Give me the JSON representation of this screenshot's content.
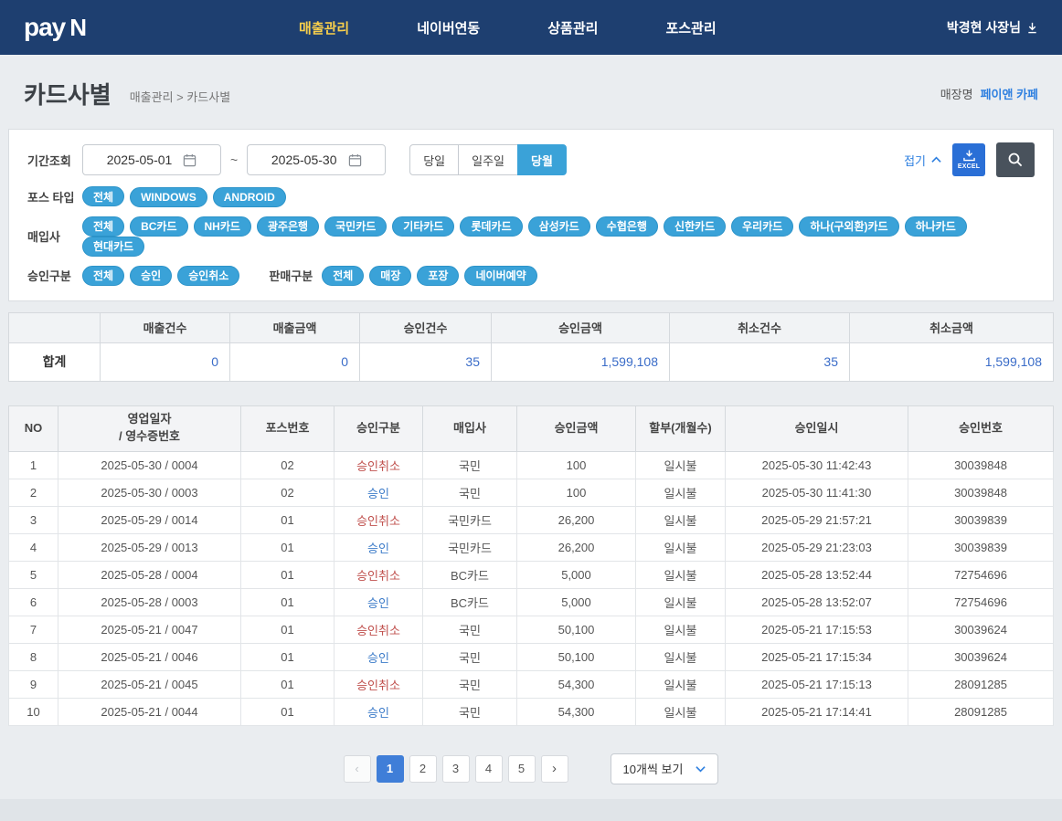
{
  "colors": {
    "c_topbar": "#1e3f70",
    "c_nav_active": "#f8cf4b",
    "c_pill": "#3aa2d8",
    "c_pill_border": "#2b93c9",
    "c_accent": "#2f80e0",
    "c_excel": "#2a6fd6",
    "c_search": "#49525c",
    "c_number": "#3a6cc8",
    "c_approve": "#3d7cc9",
    "c_cancel": "#c0504d",
    "c_page_active": "#3f7ed8"
  },
  "app": {
    "logo_pay": "pay",
    "logo_n": "N",
    "user": "박경현 사장님"
  },
  "nav": {
    "items": [
      {
        "label": "매출관리",
        "active": true
      },
      {
        "label": "네이버연동",
        "active": false
      },
      {
        "label": "상품관리",
        "active": false
      },
      {
        "label": "포스관리",
        "active": false
      }
    ]
  },
  "page": {
    "title": "카드사별",
    "breadcrumb": "매출관리 > 카드사별",
    "store_label": "매장명",
    "store_name": "페이앤 카페"
  },
  "filters": {
    "period_label": "기간조회",
    "date_from": "2025-05-01",
    "date_separator": "~",
    "date_to": "2025-05-30",
    "quick_buttons": [
      {
        "label": "당일",
        "active": false
      },
      {
        "label": "일주일",
        "active": false
      },
      {
        "label": "당월",
        "active": true
      }
    ],
    "collapse_label": "접기",
    "excel_label": "EXCEL",
    "pos_type_label": "포스 타입",
    "pos_types": [
      "전체",
      "WINDOWS",
      "ANDROID"
    ],
    "acquirer_label": "매입사",
    "acquirers": [
      "전체",
      "BC카드",
      "NH카드",
      "광주은행",
      "국민카드",
      "기타카드",
      "롯데카드",
      "삼성카드",
      "수협은행",
      "신한카드",
      "우리카드",
      "하나(구외환)카드",
      "하나카드",
      "현대카드"
    ],
    "approval_label": "승인구분",
    "approval_types": [
      "전체",
      "승인",
      "승인취소"
    ],
    "sale_label": "판매구분",
    "sale_types": [
      "전체",
      "매장",
      "포장",
      "네이버예약"
    ]
  },
  "summary": {
    "headers": [
      "매출건수",
      "매출금액",
      "승인건수",
      "승인금액",
      "취소건수",
      "취소금액"
    ],
    "row_label": "합계",
    "values": [
      "0",
      "0",
      "35",
      "1,599,108",
      "35",
      "1,599,108"
    ]
  },
  "table": {
    "headers": [
      [
        "NO"
      ],
      [
        "영업일자",
        "/ 영수증번호"
      ],
      [
        "포스번호"
      ],
      [
        "승인구분"
      ],
      [
        "매입사"
      ],
      [
        "승인금액"
      ],
      [
        "할부(개월수)"
      ],
      [
        "승인일시"
      ],
      [
        "승인번호"
      ]
    ],
    "rows": [
      {
        "no": "1",
        "date": "2025-05-30 / 0004",
        "pos": "02",
        "status": "승인취소",
        "status_type": "cancel",
        "acquirer": "국민",
        "amount": "100",
        "installment": "일시불",
        "datetime": "2025-05-30 11:42:43",
        "approval_no": "30039848"
      },
      {
        "no": "2",
        "date": "2025-05-30 / 0003",
        "pos": "02",
        "status": "승인",
        "status_type": "approve",
        "acquirer": "국민",
        "amount": "100",
        "installment": "일시불",
        "datetime": "2025-05-30 11:41:30",
        "approval_no": "30039848"
      },
      {
        "no": "3",
        "date": "2025-05-29 / 0014",
        "pos": "01",
        "status": "승인취소",
        "status_type": "cancel",
        "acquirer": "국민카드",
        "amount": "26,200",
        "installment": "일시불",
        "datetime": "2025-05-29 21:57:21",
        "approval_no": "30039839"
      },
      {
        "no": "4",
        "date": "2025-05-29 / 0013",
        "pos": "01",
        "status": "승인",
        "status_type": "approve",
        "acquirer": "국민카드",
        "amount": "26,200",
        "installment": "일시불",
        "datetime": "2025-05-29 21:23:03",
        "approval_no": "30039839"
      },
      {
        "no": "5",
        "date": "2025-05-28 / 0004",
        "pos": "01",
        "status": "승인취소",
        "status_type": "cancel",
        "acquirer": "BC카드",
        "amount": "5,000",
        "installment": "일시불",
        "datetime": "2025-05-28 13:52:44",
        "approval_no": "72754696"
      },
      {
        "no": "6",
        "date": "2025-05-28 / 0003",
        "pos": "01",
        "status": "승인",
        "status_type": "approve",
        "acquirer": "BC카드",
        "amount": "5,000",
        "installment": "일시불",
        "datetime": "2025-05-28 13:52:07",
        "approval_no": "72754696"
      },
      {
        "no": "7",
        "date": "2025-05-21 / 0047",
        "pos": "01",
        "status": "승인취소",
        "status_type": "cancel",
        "acquirer": "국민",
        "amount": "50,100",
        "installment": "일시불",
        "datetime": "2025-05-21 17:15:53",
        "approval_no": "30039624"
      },
      {
        "no": "8",
        "date": "2025-05-21 / 0046",
        "pos": "01",
        "status": "승인",
        "status_type": "approve",
        "acquirer": "국민",
        "amount": "50,100",
        "installment": "일시불",
        "datetime": "2025-05-21 17:15:34",
        "approval_no": "30039624"
      },
      {
        "no": "9",
        "date": "2025-05-21 / 0045",
        "pos": "01",
        "status": "승인취소",
        "status_type": "cancel",
        "acquirer": "국민",
        "amount": "54,300",
        "installment": "일시불",
        "datetime": "2025-05-21 17:15:13",
        "approval_no": "28091285"
      },
      {
        "no": "10",
        "date": "2025-05-21 / 0044",
        "pos": "01",
        "status": "승인",
        "status_type": "approve",
        "acquirer": "국민",
        "amount": "54,300",
        "installment": "일시불",
        "datetime": "2025-05-21 17:14:41",
        "approval_no": "28091285"
      }
    ]
  },
  "pagination": {
    "prev": "‹",
    "next": "›",
    "pages": [
      "1",
      "2",
      "3",
      "4",
      "5"
    ],
    "active_page": "1",
    "page_size_label": "10개씩 보기"
  }
}
